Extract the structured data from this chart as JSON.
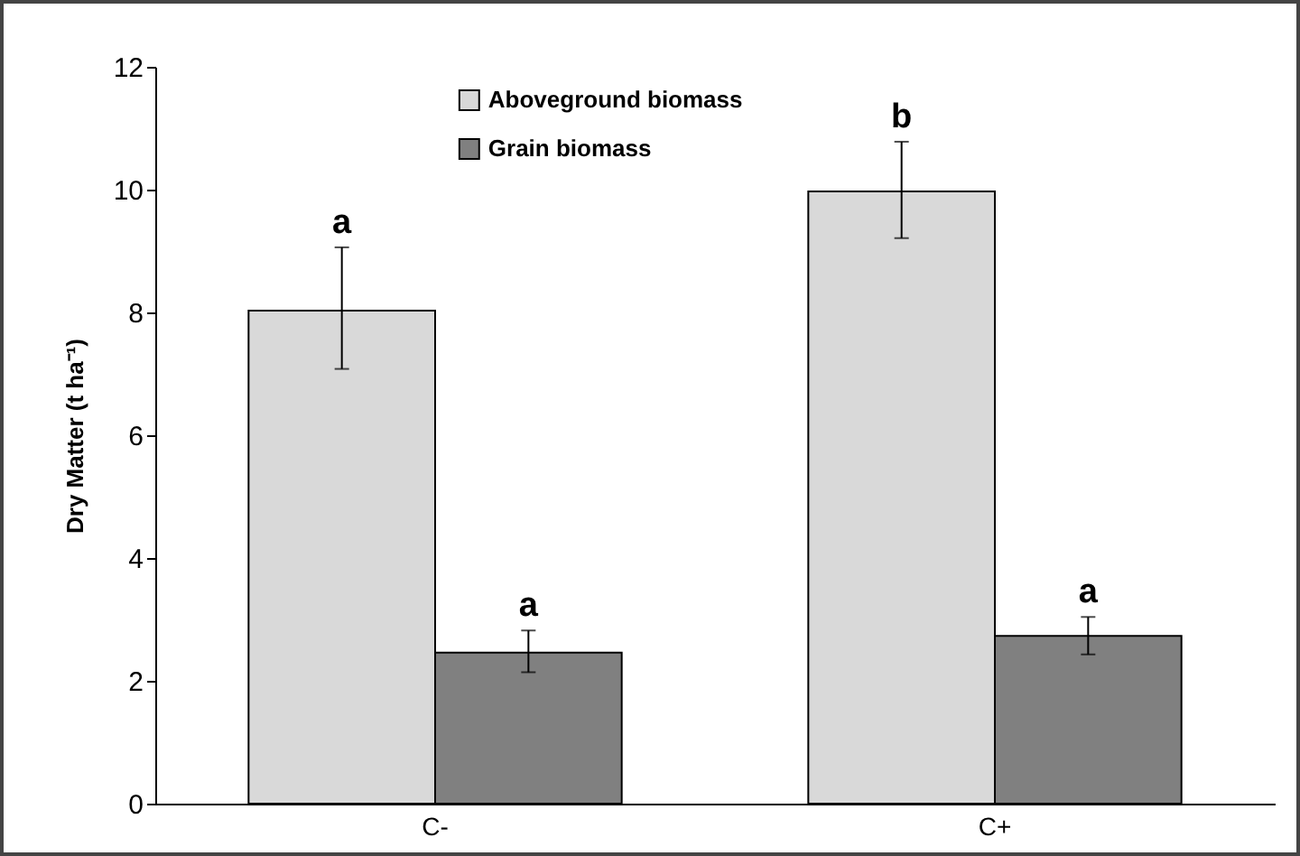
{
  "chart_data": {
    "type": "bar",
    "ylabel": "Dry Matter (t ha⁻¹)",
    "categories": [
      "C-",
      "C+"
    ],
    "series": [
      {
        "name": "Aboveground biomass",
        "color": "#d9d9d9",
        "values": [
          8.03,
          9.97
        ],
        "errors": [
          [
            7.08,
            9.06
          ],
          [
            9.21,
            10.78
          ]
        ]
      },
      {
        "name": "Grain biomass",
        "color": "#808080",
        "values": [
          2.46,
          2.73
        ],
        "errors": [
          [
            2.14,
            2.82
          ],
          [
            2.43,
            3.04
          ]
        ]
      }
    ],
    "annotations": [
      "a",
      "a",
      "b",
      "a"
    ],
    "ylim": [
      0,
      12
    ],
    "yticks": [
      0,
      2,
      4,
      6,
      8,
      10,
      12
    ],
    "grid": false,
    "legend": "top"
  }
}
